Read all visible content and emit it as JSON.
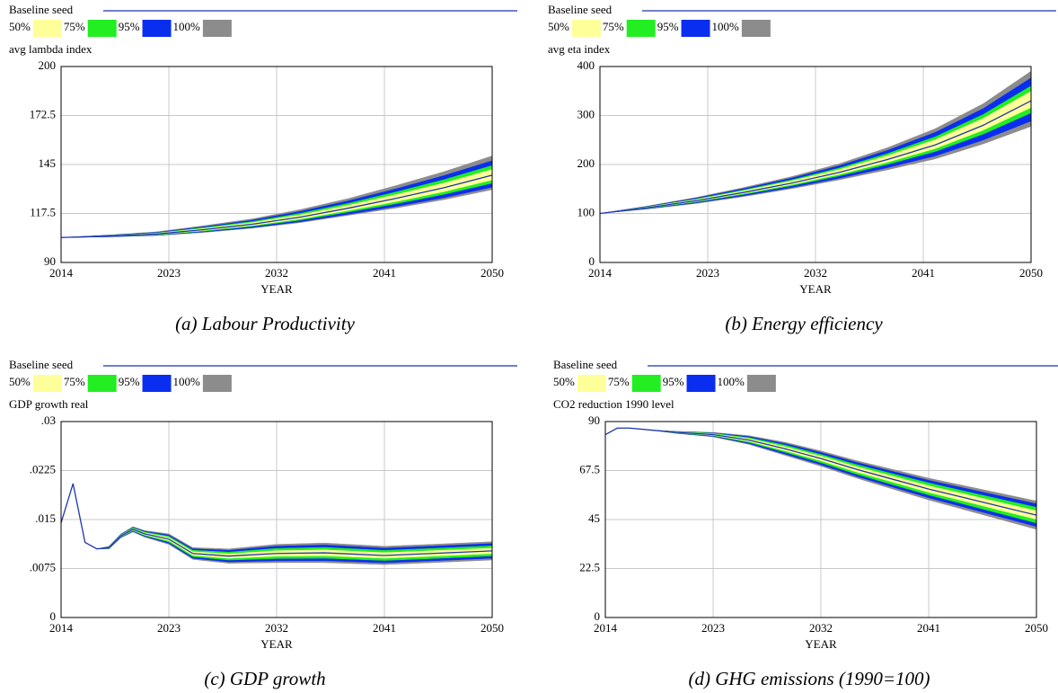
{
  "chart_data": [
    {
      "type": "fan",
      "caption": "(a) Labour Productivity",
      "y_label": "avg lambda index",
      "x_label": "YEAR",
      "xlim": [
        2014,
        2050
      ],
      "xticks": [
        2014,
        2023,
        2032,
        2041,
        2050
      ],
      "ylim": [
        90,
        200
      ],
      "yticks": [
        90,
        117.5,
        145,
        172.5,
        200
      ],
      "grid": true,
      "x": [
        2014,
        2018,
        2022,
        2026,
        2030,
        2034,
        2038,
        2042,
        2046,
        2050
      ],
      "series": [
        {
          "name": "Baseline seed",
          "color": "#1f35b0",
          "values": [
            104,
            104.8,
            106,
            108.5,
            111.5,
            115.5,
            120.5,
            126,
            132,
            139
          ]
        }
      ],
      "bands": [
        {
          "name": "50%",
          "color": "#ffff99",
          "upper": [
            104,
            105,
            106.4,
            109.1,
            112.4,
            116.7,
            122.1,
            128.1,
            134.6,
            142.2
          ],
          "lower": [
            104,
            104.7,
            105.7,
            108,
            110.8,
            114.5,
            119.2,
            124.2,
            129.8,
            136.3
          ]
        },
        {
          "name": "75%",
          "color": "#22ee22",
          "upper": [
            104,
            105.1,
            106.6,
            109.6,
            113,
            117.6,
            123.2,
            129.6,
            136.5,
            144.4
          ],
          "lower": [
            104,
            104.6,
            105.5,
            107.6,
            110.3,
            113.8,
            118.3,
            123,
            128.3,
            134.5
          ]
        },
        {
          "name": "95%",
          "color": "#0a2ef0",
          "upper": [
            104,
            105.3,
            106.9,
            110.1,
            113.8,
            118.7,
            124.6,
            131.4,
            138.8,
            147.1
          ],
          "lower": [
            104,
            104.4,
            105.3,
            107.2,
            109.6,
            112.9,
            117.1,
            121.5,
            126.4,
            132.3
          ]
        },
        {
          "name": "100%",
          "color": "#8c8c8c",
          "upper": [
            104,
            105.4,
            107.2,
            110.7,
            114.5,
            119.7,
            125.9,
            133.2,
            141,
            149.8
          ],
          "lower": [
            104,
            104.4,
            105.1,
            106.9,
            109.3,
            112.4,
            116.5,
            120.6,
            125.3,
            130.9
          ]
        }
      ]
    },
    {
      "type": "fan",
      "caption": "(b) Energy efficiency",
      "y_label": "avg eta index",
      "x_label": "YEAR",
      "xlim": [
        2014,
        2050
      ],
      "xticks": [
        2014,
        2023,
        2032,
        2041,
        2050
      ],
      "ylim": [
        0,
        400
      ],
      "yticks": [
        0,
        100,
        200,
        300,
        400
      ],
      "grid": true,
      "x": [
        2014,
        2018,
        2022,
        2026,
        2030,
        2034,
        2038,
        2042,
        2046,
        2050
      ],
      "series": [
        {
          "name": "Baseline seed",
          "color": "#1f35b0",
          "values": [
            100,
            112,
            126,
            143,
            162,
            184,
            210,
            240,
            280,
            330
          ]
        }
      ],
      "bands": [
        {
          "name": "50%",
          "color": "#ffff99",
          "upper": [
            100,
            113.1,
            128.1,
            146.2,
            166.2,
            189.6,
            217.7,
            250.5,
            294,
            349.3
          ],
          "lower": [
            100,
            111.3,
            124.5,
            140.8,
            159,
            180,
            204.5,
            232.5,
            270,
            316.3
          ]
        },
        {
          "name": "75%",
          "color": "#22ee22",
          "upper": [
            100,
            113.7,
            129.3,
            148,
            168.6,
            192.8,
            222.1,
            256.5,
            302,
            360.3
          ],
          "lower": [
            100,
            110.7,
            123.3,
            139,
            156.6,
            176.8,
            200.1,
            226.5,
            262,
            305.3
          ]
        },
        {
          "name": "95%",
          "color": "#0a2ef0",
          "upper": [
            100,
            114.6,
            131.1,
            150.7,
            172.2,
            197.6,
            228.7,
            265.5,
            314,
            376.8
          ],
          "lower": [
            100,
            109.8,
            121.5,
            136.3,
            153,
            172,
            193.5,
            217.5,
            250,
            288.8
          ]
        },
        {
          "name": "100%",
          "color": "#8c8c8c",
          "upper": [
            100,
            115.3,
            132.6,
            152.9,
            175.2,
            201.6,
            234.2,
            273,
            324,
            390.5
          ],
          "lower": [
            100,
            109.2,
            120.3,
            134.5,
            150.6,
            168.8,
            189.1,
            211.5,
            242,
            277.8
          ]
        }
      ]
    },
    {
      "type": "fan",
      "caption": "(c) GDP growth",
      "y_label": "GDP growth real",
      "x_label": "YEAR",
      "xlim": [
        2014,
        2050
      ],
      "xticks": [
        2014,
        2023,
        2032,
        2041,
        2050
      ],
      "ylim": [
        0,
        0.03
      ],
      "yticks": [
        0,
        {
          "value": 0.0075,
          "label": ".0075"
        },
        {
          "value": 0.015,
          "label": ".015"
        },
        {
          "value": 0.0225,
          "label": ".0225"
        },
        {
          "value": 0.03,
          "label": ".03"
        }
      ],
      "grid": true,
      "x": [
        2014,
        2015,
        2016,
        2017,
        2018,
        2019,
        2020,
        2021,
        2023,
        2025,
        2028,
        2032,
        2036,
        2041,
        2045,
        2050
      ],
      "series": [
        {
          "name": "Baseline seed",
          "color": "#1f35b0",
          "values": [
            0.0145,
            0.0205,
            0.0115,
            0.0105,
            0.0107,
            0.0125,
            0.0135,
            0.0128,
            0.012,
            0.0098,
            0.0094,
            0.0098,
            0.0099,
            0.0095,
            0.0098,
            0.0102
          ]
        }
      ],
      "bands": [
        {
          "name": "50%",
          "color": "#ffff99",
          "upper": [
            0.0145,
            0.0205,
            0.0115,
            0.0105,
            0.01076,
            0.01259,
            0.01362,
            0.01295,
            0.01224,
            0.01007,
            0.00973,
            0.01022,
            0.01035,
            0.00992,
            0.01022,
            0.01062
          ],
          "lower": [
            0.0145,
            0.0205,
            0.0115,
            0.0105,
            0.01064,
            0.01241,
            0.01338,
            0.01265,
            0.01176,
            0.00953,
            0.00907,
            0.00938,
            0.00945,
            0.00908,
            0.00938,
            0.00978
          ]
        },
        {
          "name": "75%",
          "color": "#22ee22",
          "upper": [
            0.0145,
            0.0205,
            0.0115,
            0.0105,
            0.01081,
            0.01267,
            0.01372,
            0.01308,
            0.01244,
            0.0103,
            0.01001,
            0.01057,
            0.01073,
            0.01027,
            0.01057,
            0.01097
          ],
          "lower": [
            0.0145,
            0.0205,
            0.0115,
            0.0105,
            0.01059,
            0.01234,
            0.01328,
            0.01253,
            0.01156,
            0.0093,
            0.0088,
            0.00903,
            0.00908,
            0.00873,
            0.00903,
            0.00943
          ]
        },
        {
          "name": "95%",
          "color": "#0a2ef0",
          "upper": [
            0.0145,
            0.0205,
            0.0115,
            0.0105,
            0.01086,
            0.01274,
            0.01382,
            0.0132,
            0.01264,
            0.01052,
            0.01028,
            0.01092,
            0.0111,
            0.01062,
            0.01092,
            0.01132
          ],
          "lower": [
            0.0145,
            0.0205,
            0.0115,
            0.0105,
            0.01054,
            0.01226,
            0.01318,
            0.0124,
            0.01136,
            0.00908,
            0.00852,
            0.00868,
            0.0087,
            0.00838,
            0.00868,
            0.00908
          ]
        },
        {
          "name": "100%",
          "color": "#8c8c8c",
          "upper": [
            0.0145,
            0.0205,
            0.0115,
            0.0105,
            0.0109,
            0.0128,
            0.0139,
            0.0133,
            0.0128,
            0.0107,
            0.0105,
            0.0112,
            0.0114,
            0.0109,
            0.0112,
            0.0116
          ],
          "lower": [
            0.0145,
            0.0205,
            0.0115,
            0.0105,
            0.0105,
            0.0122,
            0.0131,
            0.0123,
            0.0112,
            0.0089,
            0.0083,
            0.0084,
            0.0084,
            0.0081,
            0.0084,
            0.0088
          ]
        }
      ]
    },
    {
      "type": "fan",
      "caption": "(d) GHG emissions (1990=100)",
      "y_label": "CO2 reduction 1990 level",
      "x_label": "YEAR",
      "xlim": [
        2014,
        2050
      ],
      "xticks": [
        2014,
        2023,
        2032,
        2041,
        2050
      ],
      "ylim": [
        0,
        90
      ],
      "yticks": [
        0,
        22.5,
        45,
        67.5,
        90
      ],
      "grid": true,
      "x": [
        2014,
        2015,
        2016,
        2018,
        2020,
        2023,
        2026,
        2029,
        2032,
        2035,
        2038,
        2041,
        2044,
        2047,
        2050
      ],
      "series": [
        {
          "name": "Baseline seed",
          "color": "#1f35b0",
          "values": [
            84,
            87,
            87,
            86,
            85,
            84,
            81.5,
            77.5,
            73,
            68,
            63.5,
            59,
            55,
            51,
            47
          ]
        }
      ],
      "bands": [
        {
          "name": "50%",
          "color": "#ffff99",
          "upper": [
            84,
            87,
            87,
            86,
            85.2,
            84.3,
            82.1,
            78.4,
            74.1,
            69.2,
            64.9,
            60.5,
            56.7,
            52.8,
            49
          ],
          "lower": [
            84,
            87,
            87,
            86,
            84.9,
            83.7,
            80.9,
            76.6,
            72,
            66.8,
            62.2,
            57.5,
            53.4,
            49.2,
            45.1
          ]
        },
        {
          "name": "75%",
          "color": "#22ee22",
          "upper": [
            84,
            87,
            87,
            86,
            85.3,
            84.6,
            82.6,
            79.2,
            74.9,
            70.2,
            66,
            61.8,
            58,
            54.3,
            50.6
          ],
          "lower": [
            84,
            87,
            87,
            86,
            84.7,
            83.5,
            80.4,
            75.9,
            71.1,
            65.8,
            61,
            56.3,
            52,
            47.7,
            43.4
          ]
        },
        {
          "name": "95%",
          "color": "#0a2ef0",
          "upper": [
            84,
            87,
            87,
            86,
            85.4,
            84.8,
            83.1,
            79.9,
            75.8,
            71.2,
            67.1,
            63,
            59.4,
            55.8,
            52.2
          ],
          "lower": [
            84,
            87,
            87,
            86,
            84.6,
            83.2,
            79.9,
            75.1,
            70.2,
            64.8,
            59.9,
            55,
            50.6,
            46.2,
            41.8
          ]
        },
        {
          "name": "100%",
          "color": "#8c8c8c",
          "upper": [
            84,
            87,
            87,
            86,
            85.5,
            85,
            83.5,
            80.5,
            76.5,
            72,
            68,
            64,
            60.5,
            57,
            53.5
          ],
          "lower": [
            84,
            87,
            87,
            86,
            84.5,
            83,
            79.5,
            74.5,
            69.5,
            64,
            59,
            54,
            49.5,
            45,
            40.5
          ]
        }
      ]
    }
  ]
}
